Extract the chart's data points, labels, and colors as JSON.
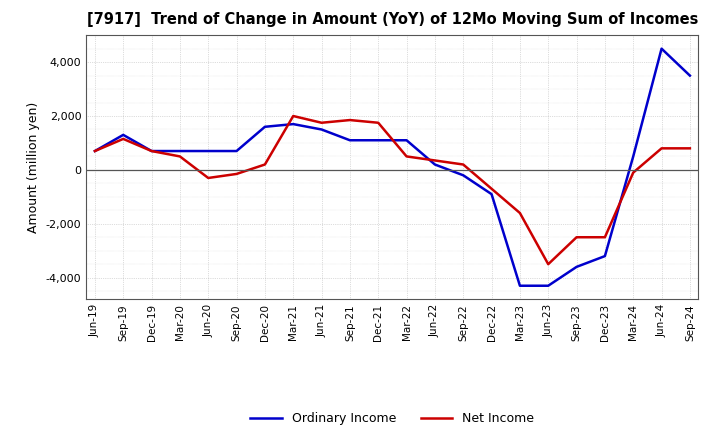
{
  "title": "[7917]  Trend of Change in Amount (YoY) of 12Mo Moving Sum of Incomes",
  "ylabel": "Amount (million yen)",
  "ylim": [
    -4800,
    5000
  ],
  "yticks": [
    -4000,
    -2000,
    0,
    2000,
    4000
  ],
  "background_color": "#ffffff",
  "plot_bg_color": "#ffffff",
  "grid_color": "#aaaaaa",
  "x_labels": [
    "Jun-19",
    "Sep-19",
    "Dec-19",
    "Mar-20",
    "Jun-20",
    "Sep-20",
    "Dec-20",
    "Mar-21",
    "Jun-21",
    "Sep-21",
    "Dec-21",
    "Mar-22",
    "Jun-22",
    "Sep-22",
    "Dec-22",
    "Mar-23",
    "Jun-23",
    "Sep-23",
    "Dec-23",
    "Mar-24",
    "Jun-24",
    "Sep-24"
  ],
  "ordinary_income": [
    700,
    1300,
    700,
    700,
    700,
    700,
    1600,
    1700,
    1500,
    1100,
    1100,
    1100,
    200,
    -200,
    -900,
    -4300,
    -4300,
    -3600,
    -3200,
    500,
    4500,
    3500
  ],
  "net_income": [
    700,
    1150,
    700,
    500,
    -300,
    -150,
    200,
    2000,
    1750,
    1850,
    1750,
    500,
    350,
    200,
    -700,
    -1600,
    -3500,
    -2500,
    -2500,
    -100,
    800,
    800
  ],
  "ordinary_color": "#0000cc",
  "net_color": "#cc0000",
  "line_width": 1.8
}
